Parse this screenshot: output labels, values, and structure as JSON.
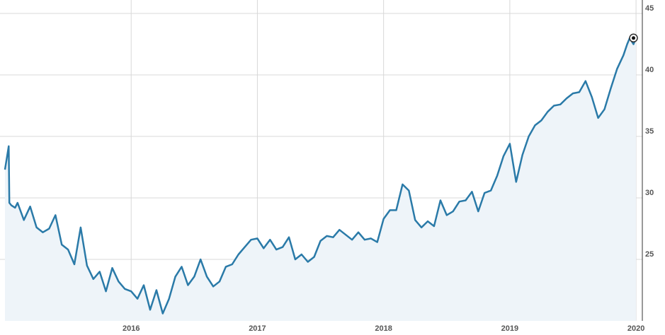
{
  "chart_data": {
    "type": "area",
    "title": "",
    "xlabel": "",
    "ylabel": "",
    "xlim": [
      2015.0,
      2020.05
    ],
    "ylim": [
      20,
      45
    ],
    "x_ticks": [
      {
        "label": "2016",
        "value": 2016.0
      },
      {
        "label": "2017",
        "value": 2017.0
      },
      {
        "label": "2018",
        "value": 2018.0
      },
      {
        "label": "2019",
        "value": 2019.0
      },
      {
        "label": "2020",
        "value": 2020.0
      }
    ],
    "y_ticks": [
      {
        "label": "25",
        "value": 25
      },
      {
        "label": "30",
        "value": 30
      },
      {
        "label": "35",
        "value": 35
      },
      {
        "label": "40",
        "value": 40
      },
      {
        "label": "45",
        "value": 45
      }
    ],
    "grid": {
      "horizontal": true,
      "vertical": true
    },
    "y_axis_position": "right",
    "colors": {
      "line": "#2a7aa8",
      "fill": "#eef4f9",
      "grid": "#d8d8d8",
      "axis": "#333333"
    },
    "series": [
      {
        "x": [
          2015.0,
          2015.03,
          2015.035,
          2015.05,
          2015.08,
          2015.1,
          2015.15,
          2015.2,
          2015.25,
          2015.3,
          2015.35,
          2015.4,
          2015.45,
          2015.5,
          2015.55,
          2015.6,
          2015.65,
          2015.7,
          2015.75,
          2015.8,
          2015.85,
          2015.9,
          2015.95,
          2016.0,
          2016.05,
          2016.1,
          2016.15,
          2016.2,
          2016.25,
          2016.3,
          2016.35,
          2016.4,
          2016.45,
          2016.5,
          2016.55,
          2016.6,
          2016.65,
          2016.7,
          2016.75,
          2016.8,
          2016.85,
          2016.9,
          2016.95,
          2017.0,
          2017.05,
          2017.1,
          2017.15,
          2017.2,
          2017.25,
          2017.3,
          2017.35,
          2017.4,
          2017.45,
          2017.5,
          2017.55,
          2017.6,
          2017.65,
          2017.7,
          2017.75,
          2017.8,
          2017.85,
          2017.9,
          2017.95,
          2018.0,
          2018.05,
          2018.1,
          2018.15,
          2018.2,
          2018.25,
          2018.3,
          2018.35,
          2018.4,
          2018.45,
          2018.5,
          2018.55,
          2018.6,
          2018.65,
          2018.7,
          2018.75,
          2018.8,
          2018.85,
          2018.9,
          2018.95,
          2019.0,
          2019.05,
          2019.1,
          2019.15,
          2019.2,
          2019.25,
          2019.3,
          2019.35,
          2019.4,
          2019.45,
          2019.5,
          2019.55,
          2019.6,
          2019.65,
          2019.7,
          2019.75,
          2019.8,
          2019.85,
          2019.9,
          2019.93,
          2019.95,
          2019.98,
          2020.0
        ],
        "values": [
          32.3,
          34.2,
          29.6,
          29.4,
          29.2,
          29.6,
          28.2,
          29.3,
          27.6,
          27.2,
          27.5,
          28.6,
          26.2,
          25.8,
          24.6,
          27.6,
          24.5,
          23.4,
          24.0,
          22.4,
          24.3,
          23.2,
          22.6,
          22.4,
          21.8,
          22.9,
          20.9,
          22.5,
          20.6,
          21.8,
          23.6,
          24.4,
          22.9,
          23.6,
          25.0,
          23.6,
          22.8,
          23.2,
          24.4,
          24.6,
          25.4,
          26.0,
          26.6,
          26.7,
          25.9,
          26.6,
          25.8,
          26.0,
          26.8,
          25.0,
          25.4,
          24.8,
          25.2,
          26.5,
          26.9,
          26.8,
          27.4,
          27.0,
          26.6,
          27.2,
          26.6,
          26.7,
          26.4,
          28.3,
          29.0,
          29.0,
          31.1,
          30.6,
          28.2,
          27.6,
          28.1,
          27.7,
          29.8,
          28.6,
          28.9,
          29.7,
          29.8,
          30.5,
          28.9,
          30.4,
          30.6,
          31.8,
          33.4,
          34.4,
          31.3,
          33.5,
          35.0,
          35.9,
          36.3,
          37.0,
          37.5,
          37.6,
          38.1,
          38.5,
          38.6,
          39.5,
          38.2,
          36.5,
          37.2,
          38.9,
          40.5,
          41.6,
          42.5,
          43.0,
          42.5,
          43.0
        ]
      }
    ],
    "end_marker": {
      "x": 2019.98,
      "y": 43.0
    }
  }
}
